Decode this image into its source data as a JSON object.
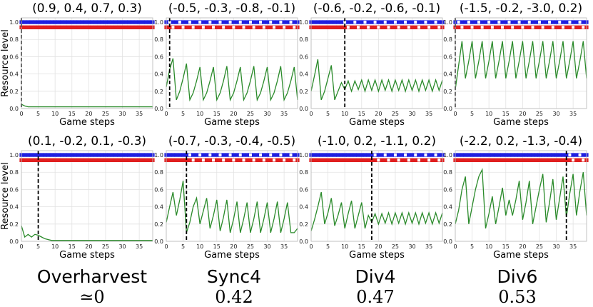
{
  "shared": {
    "xlabel": "Game steps",
    "ylabel": "Resource level",
    "x_ticks": [
      0,
      5,
      10,
      15,
      20,
      25,
      30,
      35
    ],
    "y_ticks": [
      "0.0",
      "0.2",
      "0.4",
      "0.6",
      "0.8",
      "1.0"
    ],
    "line_color": "#2a8a2a",
    "player_blue": "#1f1fe0",
    "player_red": "#e01f1f"
  },
  "captions": [
    {
      "name": "Overharvest",
      "value": "≃0"
    },
    {
      "name": "Sync4",
      "value": "0.42"
    },
    {
      "name": "Div4",
      "value": "0.47"
    },
    {
      "name": "Div6",
      "value": "0.53"
    }
  ],
  "chart_data": [
    {
      "type": "line",
      "title": "(0.9,  0.4, 0.7,  0.3)",
      "xlim": [
        0,
        39
      ],
      "ylim": [
        0,
        1.05
      ],
      "vline_x": 0,
      "ylabel": "Resource level",
      "xlabel": "Game steps",
      "x": [
        0,
        1,
        2,
        3,
        4,
        5,
        6,
        7,
        8,
        9,
        10,
        11,
        12,
        13,
        14,
        15,
        16,
        17,
        18,
        19,
        20,
        21,
        22,
        23,
        24,
        25,
        26,
        27,
        28,
        29,
        30,
        31,
        32,
        33,
        34,
        35,
        36,
        37,
        38,
        39
      ],
      "values": [
        0.05,
        0.03,
        0.02,
        0.02,
        0.02,
        0.02,
        0.02,
        0.02,
        0.02,
        0.02,
        0.02,
        0.02,
        0.02,
        0.02,
        0.02,
        0.02,
        0.02,
        0.02,
        0.02,
        0.02,
        0.02,
        0.02,
        0.02,
        0.02,
        0.02,
        0.02,
        0.02,
        0.02,
        0.02,
        0.02,
        0.02,
        0.02,
        0.02,
        0.02,
        0.02,
        0.02,
        0.02,
        0.02,
        0.02,
        0.02
      ]
    },
    {
      "type": "line",
      "title": "(-0.5, -0.3, -0.8, -0.1)",
      "xlim": [
        0,
        39
      ],
      "ylim": [
        0,
        1.05
      ],
      "vline_x": 1,
      "ylabel": "",
      "xlabel": "Game steps",
      "x": [
        0,
        1,
        2,
        3,
        4,
        5,
        6,
        7,
        8,
        9,
        10,
        11,
        12,
        13,
        14,
        15,
        16,
        17,
        18,
        19,
        20,
        21,
        22,
        23,
        24,
        25,
        26,
        27,
        28,
        29,
        30,
        31,
        32,
        33,
        34,
        35,
        36,
        37,
        38,
        39
      ],
      "values": [
        0.25,
        0.45,
        0.58,
        0.1,
        0.2,
        0.35,
        0.52,
        0.1,
        0.18,
        0.32,
        0.48,
        0.1,
        0.18,
        0.32,
        0.48,
        0.1,
        0.18,
        0.32,
        0.49,
        0.1,
        0.18,
        0.32,
        0.48,
        0.1,
        0.18,
        0.32,
        0.49,
        0.1,
        0.18,
        0.32,
        0.48,
        0.1,
        0.18,
        0.32,
        0.49,
        0.1,
        0.18,
        0.32,
        0.48,
        0.1
      ]
    },
    {
      "type": "line",
      "title": "(-0.6, -0.2, -0.6, -0.1)",
      "xlim": [
        0,
        39
      ],
      "ylim": [
        0,
        1.05
      ],
      "vline_x": 10,
      "ylabel": "",
      "xlabel": "Game steps",
      "x": [
        0,
        1,
        2,
        3,
        4,
        5,
        6,
        7,
        8,
        9,
        10,
        11,
        12,
        13,
        14,
        15,
        16,
        17,
        18,
        19,
        20,
        21,
        22,
        23,
        24,
        25,
        26,
        27,
        28,
        29,
        30,
        31,
        32,
        33,
        34,
        35,
        36,
        37,
        38,
        39
      ],
      "values": [
        0.2,
        0.38,
        0.57,
        0.1,
        0.2,
        0.35,
        0.5,
        0.1,
        0.2,
        0.3,
        0.22,
        0.32,
        0.2,
        0.32,
        0.22,
        0.33,
        0.2,
        0.33,
        0.21,
        0.33,
        0.2,
        0.33,
        0.21,
        0.33,
        0.2,
        0.33,
        0.21,
        0.33,
        0.2,
        0.33,
        0.21,
        0.33,
        0.2,
        0.33,
        0.21,
        0.33,
        0.2,
        0.33,
        0.21,
        0.33
      ]
    },
    {
      "type": "line",
      "title": "(-1.5, -0.2, -3.0,  0.2)",
      "xlim": [
        0,
        39
      ],
      "ylim": [
        0,
        1.05
      ],
      "vline_x": 0,
      "ylabel": "",
      "xlabel": "Game steps",
      "x": [
        0,
        1,
        2,
        3,
        4,
        5,
        6,
        7,
        8,
        9,
        10,
        11,
        12,
        13,
        14,
        15,
        16,
        17,
        18,
        19,
        20,
        21,
        22,
        23,
        24,
        25,
        26,
        27,
        28,
        29,
        30,
        31,
        32,
        33,
        34,
        35,
        36,
        37,
        38,
        39
      ],
      "values": [
        0.22,
        0.5,
        0.78,
        0.35,
        0.55,
        0.78,
        0.35,
        0.55,
        0.78,
        0.35,
        0.55,
        0.78,
        0.35,
        0.55,
        0.78,
        0.35,
        0.55,
        0.78,
        0.35,
        0.55,
        0.78,
        0.35,
        0.55,
        0.78,
        0.35,
        0.55,
        0.78,
        0.35,
        0.55,
        0.78,
        0.35,
        0.55,
        0.78,
        0.35,
        0.55,
        0.78,
        0.35,
        0.55,
        0.78,
        0.35
      ]
    },
    {
      "type": "line",
      "title": "(0.1, -0.2, 0.1, -0.3)",
      "xlim": [
        0,
        39
      ],
      "ylim": [
        0,
        1.05
      ],
      "vline_x": 5,
      "ylabel": "Resource level",
      "xlabel": "Game steps",
      "x": [
        0,
        1,
        2,
        3,
        4,
        5,
        6,
        7,
        8,
        9,
        10,
        11,
        12,
        13,
        14,
        15,
        16,
        17,
        18,
        19,
        20,
        21,
        22,
        23,
        24,
        25,
        26,
        27,
        28,
        29,
        30,
        31,
        32,
        33,
        34,
        35,
        36,
        37,
        38,
        39
      ],
      "values": [
        0.18,
        0.05,
        0.08,
        0.05,
        0.08,
        0.07,
        0.05,
        0.03,
        0.02,
        0.01,
        0.01,
        0.01,
        0.01,
        0.01,
        0.01,
        0.01,
        0.01,
        0.01,
        0.01,
        0.01,
        0.01,
        0.01,
        0.01,
        0.01,
        0.01,
        0.01,
        0.01,
        0.01,
        0.01,
        0.01,
        0.01,
        0.01,
        0.01,
        0.01,
        0.01,
        0.01,
        0.01,
        0.01,
        0.01,
        0.01
      ]
    },
    {
      "type": "line",
      "title": "(-0.7, -0.3, -0.4, -0.5)",
      "xlim": [
        0,
        39
      ],
      "ylim": [
        0,
        1.05
      ],
      "vline_x": 6,
      "ylabel": "",
      "xlabel": "Game steps",
      "x": [
        0,
        1,
        2,
        3,
        4,
        5,
        6,
        7,
        8,
        9,
        10,
        11,
        12,
        13,
        14,
        15,
        16,
        17,
        18,
        19,
        20,
        21,
        22,
        23,
        24,
        25,
        26,
        27,
        28,
        29,
        30,
        31,
        32,
        33,
        34,
        35,
        36,
        37,
        38,
        39
      ],
      "values": [
        0.22,
        0.4,
        0.57,
        0.3,
        0.48,
        0.7,
        0.1,
        0.22,
        0.4,
        0.5,
        0.2,
        0.35,
        0.5,
        0.15,
        0.3,
        0.48,
        0.12,
        0.28,
        0.48,
        0.1,
        0.26,
        0.46,
        0.1,
        0.26,
        0.45,
        0.1,
        0.26,
        0.46,
        0.1,
        0.26,
        0.45,
        0.1,
        0.26,
        0.46,
        0.1,
        0.26,
        0.45,
        0.1,
        0.1,
        0.15
      ]
    },
    {
      "type": "line",
      "title": "(-1.0,  0.2, -1.1,  0.2)",
      "xlim": [
        0,
        39
      ],
      "ylim": [
        0,
        1.05
      ],
      "vline_x": 18,
      "ylabel": "",
      "xlabel": "Game steps",
      "x": [
        0,
        1,
        2,
        3,
        4,
        5,
        6,
        7,
        8,
        9,
        10,
        11,
        12,
        13,
        14,
        15,
        16,
        17,
        18,
        19,
        20,
        21,
        22,
        23,
        24,
        25,
        26,
        27,
        28,
        29,
        30,
        31,
        32,
        33,
        34,
        35,
        36,
        37,
        38,
        39
      ],
      "values": [
        0.12,
        0.25,
        0.4,
        0.57,
        0.2,
        0.33,
        0.5,
        0.18,
        0.3,
        0.45,
        0.15,
        0.32,
        0.47,
        0.15,
        0.3,
        0.45,
        0.15,
        0.3,
        0.22,
        0.32,
        0.2,
        0.32,
        0.21,
        0.33,
        0.2,
        0.33,
        0.21,
        0.33,
        0.2,
        0.33,
        0.21,
        0.33,
        0.2,
        0.33,
        0.21,
        0.33,
        0.2,
        0.33,
        0.21,
        0.33
      ]
    },
    {
      "type": "line",
      "title": "(-2.2,  0.2, -1.3, -0.4)",
      "xlim": [
        0,
        39
      ],
      "ylim": [
        0,
        1.05
      ],
      "vline_x": 33,
      "ylabel": "",
      "xlabel": "Game steps",
      "x": [
        0,
        1,
        2,
        3,
        4,
        5,
        6,
        7,
        8,
        9,
        10,
        11,
        12,
        13,
        14,
        15,
        16,
        17,
        18,
        19,
        20,
        21,
        22,
        23,
        24,
        25,
        26,
        27,
        28,
        29,
        30,
        31,
        32,
        33,
        34,
        35,
        36,
        37,
        38,
        39
      ],
      "values": [
        0.2,
        0.36,
        0.6,
        0.75,
        0.2,
        0.4,
        0.6,
        0.75,
        0.83,
        0.15,
        0.32,
        0.52,
        0.2,
        0.4,
        0.62,
        0.3,
        0.48,
        0.3,
        0.48,
        0.7,
        0.25,
        0.45,
        0.7,
        0.2,
        0.4,
        0.6,
        0.78,
        0.22,
        0.45,
        0.72,
        0.25,
        0.5,
        0.75,
        0.28,
        0.55,
        0.78,
        0.3,
        0.58,
        0.8,
        0.3
      ]
    }
  ]
}
